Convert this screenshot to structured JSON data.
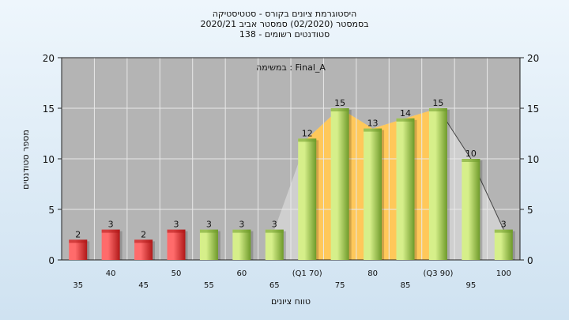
{
  "chart_data": {
    "type": "bar",
    "title_lines": [
      "היסטוגרמת ציונים בקורס - סטטיסטיקה",
      "בסמסטר  (02/2020)  סמסטר אביב 2020/21",
      "סטודנטים רשומים - 138"
    ],
    "annotation": "במשימה : Final_A",
    "xlabel": "טווח ציונים",
    "ylabel": "מספר סטודנטים",
    "ylim": [
      0,
      20
    ],
    "yticks": [
      0,
      5,
      10,
      15,
      20
    ],
    "grid": true,
    "categories": [
      "35",
      "40",
      "45",
      "50",
      "55",
      "60",
      "65",
      "(Q1 70)",
      "75",
      "80",
      "85",
      "(Q3 90)",
      "95",
      "100"
    ],
    "values": [
      2,
      3,
      2,
      3,
      3,
      3,
      3,
      12,
      15,
      13,
      14,
      15,
      10,
      3
    ],
    "bar_colors": [
      "red",
      "red",
      "red",
      "red",
      "green",
      "green",
      "green",
      "green",
      "green",
      "green",
      "green",
      "green",
      "green",
      "green"
    ],
    "colors": {
      "red_light": "#ff6b6b",
      "red_dark": "#b01818",
      "green_light": "#d6ef8a",
      "green_dark": "#6e9a2a",
      "plot_bg": "#b4b4b4",
      "gray_area": "#cfcfcf",
      "iqr_area": "#ffc85a"
    }
  }
}
